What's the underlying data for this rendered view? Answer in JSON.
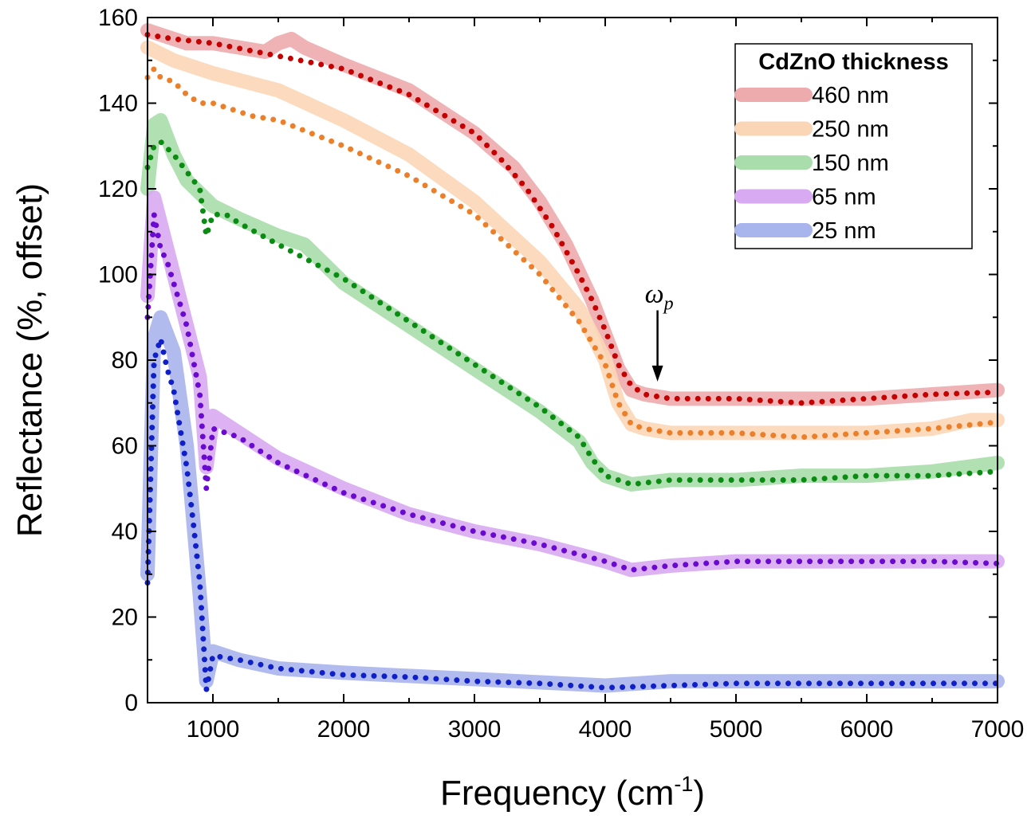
{
  "chart_data": {
    "type": "line",
    "xlabel": "Frequency (cm",
    "xlabel_sup": "-1",
    "xlabel_suffix": ")",
    "ylabel": "Reflectance (%, offset)",
    "xlim": [
      500,
      7000
    ],
    "ylim": [
      0,
      160
    ],
    "x_ticks": [
      1000,
      2000,
      3000,
      4000,
      5000,
      6000,
      7000
    ],
    "x_tick_labels": [
      "1000",
      "2000",
      "3000",
      "4000",
      "5000",
      "6000",
      "7000"
    ],
    "y_ticks": [
      0,
      20,
      40,
      60,
      80,
      100,
      120,
      140,
      160
    ],
    "y_tick_labels": [
      "0",
      "20",
      "40",
      "60",
      "80",
      "100",
      "120",
      "140",
      "160"
    ],
    "grid": false,
    "legend": {
      "title": "CdZnO thickness",
      "position": "top-right",
      "entries": [
        "460 nm",
        "250 nm",
        "150 nm",
        "65 nm",
        "25 nm"
      ]
    },
    "annotation": {
      "text": "ω",
      "subscript": "p",
      "x": 4400,
      "y_from": 92,
      "y_to": 75
    },
    "series": [
      {
        "name": "460 nm",
        "measured_color": "#eeabad",
        "fit_color": "#c40000",
        "measured": [
          [
            500,
            157
          ],
          [
            600,
            156
          ],
          [
            800,
            154
          ],
          [
            1000,
            154
          ],
          [
            1200,
            153
          ],
          [
            1400,
            152
          ],
          [
            1500,
            154
          ],
          [
            1600,
            155
          ],
          [
            1700,
            153
          ],
          [
            2000,
            149
          ],
          [
            2500,
            143
          ],
          [
            3000,
            133
          ],
          [
            3300,
            125
          ],
          [
            3500,
            117
          ],
          [
            3700,
            107
          ],
          [
            3900,
            94
          ],
          [
            4000,
            86
          ],
          [
            4100,
            78
          ],
          [
            4200,
            73
          ],
          [
            4300,
            72
          ],
          [
            4500,
            71
          ],
          [
            5000,
            71
          ],
          [
            5500,
            71
          ],
          [
            6000,
            71
          ],
          [
            6500,
            72
          ],
          [
            7000,
            73
          ]
        ],
        "fit": [
          [
            500,
            156
          ],
          [
            700,
            155
          ],
          [
            1000,
            154
          ],
          [
            1500,
            151
          ],
          [
            2000,
            148
          ],
          [
            2500,
            142
          ],
          [
            3000,
            133
          ],
          [
            3200,
            127
          ],
          [
            3400,
            120
          ],
          [
            3600,
            111
          ],
          [
            3800,
            100
          ],
          [
            3900,
            94
          ],
          [
            4000,
            87
          ],
          [
            4100,
            79
          ],
          [
            4200,
            74
          ],
          [
            4300,
            72
          ],
          [
            4500,
            71
          ],
          [
            5000,
            71
          ],
          [
            5500,
            70
          ],
          [
            6000,
            71
          ],
          [
            6500,
            72
          ],
          [
            7000,
            72.5
          ]
        ]
      },
      {
        "name": "250 nm",
        "measured_color": "#fbd6b6",
        "fit_color": "#ec7f2a",
        "measured": [
          [
            500,
            153
          ],
          [
            700,
            150
          ],
          [
            1000,
            147
          ],
          [
            1500,
            143
          ],
          [
            2000,
            136
          ],
          [
            2500,
            128
          ],
          [
            3000,
            117
          ],
          [
            3500,
            103
          ],
          [
            3800,
            92
          ],
          [
            4000,
            80
          ],
          [
            4100,
            70
          ],
          [
            4200,
            65
          ],
          [
            4300,
            64
          ],
          [
            4500,
            63
          ],
          [
            5000,
            63
          ],
          [
            5500,
            63
          ],
          [
            6000,
            63
          ],
          [
            6500,
            64
          ],
          [
            6800,
            66
          ],
          [
            7000,
            66
          ]
        ],
        "fit": [
          [
            500,
            146
          ],
          [
            550,
            148
          ],
          [
            600,
            146
          ],
          [
            700,
            145
          ],
          [
            800,
            142
          ],
          [
            900,
            140
          ],
          [
            1000,
            140
          ],
          [
            1300,
            137
          ],
          [
            1500,
            136
          ],
          [
            2000,
            130
          ],
          [
            2500,
            123
          ],
          [
            3000,
            114
          ],
          [
            3500,
            100
          ],
          [
            3800,
            89
          ],
          [
            4000,
            79
          ],
          [
            4100,
            70
          ],
          [
            4200,
            65
          ],
          [
            4300,
            64
          ],
          [
            4500,
            63
          ],
          [
            5000,
            63
          ],
          [
            5500,
            62
          ],
          [
            6000,
            63
          ],
          [
            6500,
            64
          ],
          [
            7000,
            65.5
          ]
        ]
      },
      {
        "name": "150 nm",
        "measured_color": "#a9ddab",
        "fit_color": "#0a8c12",
        "measured": [
          [
            500,
            120
          ],
          [
            550,
            135
          ],
          [
            600,
            136
          ],
          [
            700,
            128
          ],
          [
            800,
            122
          ],
          [
            900,
            119
          ],
          [
            1000,
            116
          ],
          [
            1200,
            113
          ],
          [
            1500,
            109
          ],
          [
            1700,
            107
          ],
          [
            2000,
            98
          ],
          [
            2500,
            88
          ],
          [
            3000,
            78
          ],
          [
            3500,
            68
          ],
          [
            3800,
            61
          ],
          [
            3900,
            56
          ],
          [
            4000,
            53
          ],
          [
            4200,
            51
          ],
          [
            4500,
            52
          ],
          [
            5000,
            52
          ],
          [
            5500,
            53
          ],
          [
            6000,
            53
          ],
          [
            6500,
            54
          ],
          [
            7000,
            56
          ]
        ],
        "fit": [
          [
            500,
            125
          ],
          [
            550,
            130
          ],
          [
            600,
            131
          ],
          [
            700,
            128
          ],
          [
            800,
            124
          ],
          [
            900,
            120
          ],
          [
            950,
            109
          ],
          [
            1000,
            114
          ],
          [
            1100,
            114
          ],
          [
            1200,
            112
          ],
          [
            1500,
            107
          ],
          [
            2000,
            99
          ],
          [
            2500,
            89
          ],
          [
            3000,
            79
          ],
          [
            3500,
            69
          ],
          [
            3800,
            62
          ],
          [
            3900,
            57
          ],
          [
            4000,
            53
          ],
          [
            4100,
            52
          ],
          [
            4200,
            51
          ],
          [
            4500,
            52
          ],
          [
            5000,
            52
          ],
          [
            5500,
            52
          ],
          [
            6000,
            53
          ],
          [
            6500,
            53
          ],
          [
            7000,
            54
          ]
        ]
      },
      {
        "name": "65 nm",
        "measured_color": "#d8aaf2",
        "fit_color": "#6a0ad0",
        "measured": [
          [
            500,
            95
          ],
          [
            550,
            118
          ],
          [
            600,
            112
          ],
          [
            700,
            100
          ],
          [
            800,
            88
          ],
          [
            900,
            76
          ],
          [
            950,
            55
          ],
          [
            1000,
            67
          ],
          [
            1200,
            63
          ],
          [
            1500,
            57
          ],
          [
            2000,
            50
          ],
          [
            2500,
            44
          ],
          [
            3000,
            40
          ],
          [
            3500,
            37
          ],
          [
            4000,
            33
          ],
          [
            4200,
            31
          ],
          [
            4500,
            32
          ],
          [
            5000,
            33
          ],
          [
            5500,
            33
          ],
          [
            6000,
            33
          ],
          [
            6500,
            33
          ],
          [
            7000,
            33
          ]
        ],
        "fit": [
          [
            500,
            90
          ],
          [
            550,
            114
          ],
          [
            600,
            106
          ],
          [
            650,
            103
          ],
          [
            700,
            98
          ],
          [
            800,
            88
          ],
          [
            900,
            72
          ],
          [
            950,
            50
          ],
          [
            1000,
            64
          ],
          [
            1100,
            63
          ],
          [
            1200,
            62
          ],
          [
            1500,
            56
          ],
          [
            2000,
            49
          ],
          [
            2500,
            44
          ],
          [
            3000,
            40
          ],
          [
            3500,
            37
          ],
          [
            4000,
            33
          ],
          [
            4200,
            31
          ],
          [
            4500,
            32
          ],
          [
            5000,
            33
          ],
          [
            5500,
            33
          ],
          [
            6000,
            33
          ],
          [
            6500,
            33
          ],
          [
            7000,
            32.5
          ]
        ]
      },
      {
        "name": "25 nm",
        "measured_color": "#a8b4ec",
        "fit_color": "#1020c8",
        "measured": [
          [
            500,
            30
          ],
          [
            550,
            85
          ],
          [
            600,
            90
          ],
          [
            700,
            82
          ],
          [
            800,
            60
          ],
          [
            900,
            25
          ],
          [
            950,
            5
          ],
          [
            1000,
            12
          ],
          [
            1200,
            10
          ],
          [
            1500,
            8
          ],
          [
            2000,
            7
          ],
          [
            3000,
            5.5
          ],
          [
            4000,
            4
          ],
          [
            4500,
            5
          ],
          [
            5000,
            5
          ],
          [
            6000,
            5
          ],
          [
            7000,
            5
          ]
        ],
        "fit": [
          [
            500,
            28
          ],
          [
            550,
            80
          ],
          [
            600,
            85
          ],
          [
            650,
            78
          ],
          [
            700,
            73
          ],
          [
            800,
            55
          ],
          [
            850,
            42
          ],
          [
            900,
            28
          ],
          [
            950,
            3
          ],
          [
            1000,
            11
          ],
          [
            1200,
            10
          ],
          [
            1500,
            8
          ],
          [
            2000,
            6.5
          ],
          [
            2500,
            6
          ],
          [
            3000,
            5
          ],
          [
            3500,
            4.5
          ],
          [
            4000,
            3.5
          ],
          [
            4500,
            4
          ],
          [
            5000,
            4.5
          ],
          [
            5500,
            4.5
          ],
          [
            6000,
            4.5
          ],
          [
            6500,
            4.5
          ],
          [
            7000,
            4.5
          ]
        ]
      }
    ]
  }
}
